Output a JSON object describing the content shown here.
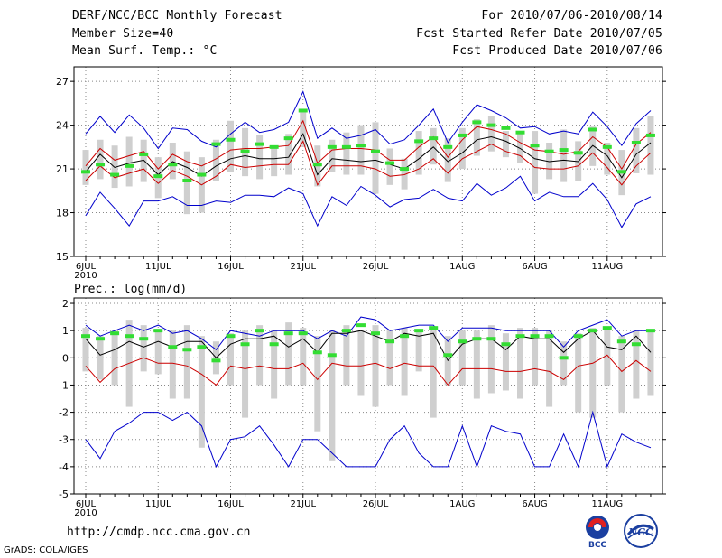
{
  "header": {
    "title": "DERF/NCC/BCC Monthly Forecast",
    "member_size": "Member Size=40",
    "variable": "Mean Surf. Temp.: °C",
    "period": "For 2010/07/06-2010/08/14",
    "started": "Fcst Started Refer Date 2010/07/05",
    "produced": "Fcst Produced Date 2010/07/06"
  },
  "footer": {
    "url": "http://cmdp.ncc.cma.gov.cn",
    "grads": "GrADS: COLA/IGES",
    "logo_bcc": "BCC",
    "logo_ncc": "NCC"
  },
  "colors": {
    "max": "#0000cc",
    "mean": "#000000",
    "spread": "#cc0000",
    "box": "#cfcfcf",
    "obs": "#33dd33",
    "grid": "#888888"
  },
  "chart_data": [
    {
      "type": "line",
      "title": "Mean Surf. Temp.: °C",
      "x_labels": [
        "6JUL\n2010",
        "11JUL",
        "16JUL",
        "21JUL",
        "26JUL",
        "1AUG",
        "6AUG",
        "11AUG"
      ],
      "x_label_index": [
        0,
        5,
        10,
        15,
        20,
        26,
        31,
        36
      ],
      "ylim": [
        15,
        28
      ],
      "yticks": [
        15,
        18,
        21,
        24,
        27
      ],
      "days": 40,
      "series": [
        {
          "name": "max",
          "color": "#0000cc",
          "values": [
            17.8,
            19.4,
            18.3,
            17.1,
            18.8,
            18.8,
            19.1,
            18.5,
            18.5,
            18.8,
            18.7,
            19.2,
            19.2,
            19.1,
            19.7,
            19.3,
            17.1,
            19.1,
            18.5,
            19.8,
            19.2,
            18.4,
            18.9,
            19.0,
            19.6,
            19.0,
            18.8,
            20.0,
            19.2,
            19.7,
            20.5,
            18.8,
            19.4,
            19.1,
            19.1,
            20.0,
            18.9,
            17.0,
            18.6,
            19.1
          ]
        },
        {
          "name": "ens_max",
          "color": "#0000cc",
          "values": [
            23.4,
            24.6,
            23.5,
            24.7,
            23.8,
            22.4,
            23.8,
            23.7,
            22.9,
            22.5,
            23.4,
            24.2,
            23.5,
            23.7,
            24.2,
            26.3,
            23.1,
            23.8,
            23.1,
            23.3,
            23.7,
            22.7,
            23.0,
            24.0,
            25.1,
            22.8,
            24.2,
            25.4,
            25.0,
            24.5,
            23.8,
            23.9,
            23.4,
            23.6,
            23.4,
            24.9,
            23.9,
            22.6,
            24.1,
            25.0
          ]
        },
        {
          "name": "upper",
          "color": "#cc0000",
          "values": [
            21.2,
            22.4,
            21.6,
            21.9,
            22.2,
            21.0,
            22.0,
            21.5,
            21.2,
            21.7,
            22.3,
            22.4,
            22.4,
            22.5,
            22.6,
            24.3,
            21.4,
            22.3,
            22.4,
            22.4,
            22.3,
            21.6,
            21.6,
            22.5,
            23.2,
            21.8,
            23.0,
            23.9,
            23.7,
            23.4,
            22.8,
            22.3,
            22.2,
            22.0,
            22.2,
            23.2,
            22.5,
            21.0,
            22.7,
            23.5
          ]
        },
        {
          "name": "mean",
          "color": "#000000",
          "values": [
            20.8,
            22.0,
            21.1,
            21.4,
            21.6,
            20.6,
            21.5,
            21.1,
            20.5,
            21.2,
            21.7,
            21.9,
            21.7,
            21.7,
            21.8,
            23.4,
            20.6,
            21.7,
            21.6,
            21.5,
            21.6,
            21.3,
            21.0,
            21.7,
            22.5,
            21.5,
            22.1,
            23.0,
            23.2,
            22.9,
            22.4,
            21.7,
            21.5,
            21.6,
            21.5,
            22.6,
            21.9,
            20.4,
            22.0,
            22.8
          ]
        },
        {
          "name": "lower",
          "color": "#cc0000",
          "values": [
            20.2,
            21.2,
            20.4,
            20.7,
            21.0,
            20.0,
            20.9,
            20.5,
            19.9,
            20.5,
            21.3,
            21.1,
            21.2,
            21.3,
            21.3,
            22.9,
            19.9,
            21.2,
            21.2,
            21.2,
            21.0,
            20.5,
            20.6,
            21.0,
            21.7,
            20.7,
            21.7,
            22.2,
            22.7,
            22.2,
            21.9,
            21.1,
            21.0,
            21.0,
            21.2,
            22.1,
            21.1,
            19.9,
            21.2,
            22.1
          ]
        }
      ],
      "box_low": [
        19.9,
        20.3,
        19.7,
        19.8,
        20.1,
        19.0,
        20.3,
        17.9,
        18.0,
        20.2,
        20.8,
        20.5,
        20.3,
        20.5,
        20.6,
        22.5,
        19.8,
        20.8,
        20.6,
        20.6,
        19.3,
        19.9,
        19.6,
        20.6,
        21.3,
        20.1,
        21.0,
        21.9,
        22.2,
        21.8,
        21.4,
        19.3,
        20.3,
        20.1,
        20.2,
        21.2,
        20.6,
        19.2,
        20.7,
        20.6
      ],
      "box_high": [
        22.3,
        23.0,
        22.6,
        23.2,
        23.0,
        21.8,
        22.8,
        22.2,
        21.8,
        23.0,
        24.3,
        23.8,
        23.3,
        22.5,
        23.4,
        25.1,
        22.6,
        23.0,
        23.5,
        24.0,
        24.2,
        22.4,
        21.7,
        23.6,
        23.8,
        23.1,
        23.8,
        24.4,
        24.6,
        23.6,
        23.5,
        23.6,
        22.8,
        23.7,
        22.9,
        23.9,
        22.8,
        22.3,
        23.8,
        24.6
      ],
      "observed": [
        20.8,
        21.3,
        20.6,
        21.2,
        22.0,
        20.5,
        21.3,
        20.2,
        20.6,
        22.7,
        23.0,
        22.2,
        22.7,
        22.5,
        23.1,
        25.0,
        21.3,
        22.5,
        22.5,
        22.6,
        22.2,
        21.4,
        21.0,
        22.9,
        23.1,
        22.5,
        23.3,
        24.2,
        24.0,
        23.8,
        23.5,
        22.6,
        22.2,
        22.3,
        22.1,
        23.7,
        22.5,
        20.8,
        22.8,
        23.3
      ]
    },
    {
      "type": "line",
      "title": "Prec.: log(mm/d)",
      "x_labels": [
        "6JUL\n2010",
        "11JUL",
        "16JUL",
        "21JUL",
        "26JUL",
        "1AUG",
        "6AUG",
        "11AUG"
      ],
      "x_label_index": [
        0,
        5,
        10,
        15,
        20,
        26,
        31,
        36
      ],
      "ylim": [
        -5,
        2.2
      ],
      "yticks": [
        -5,
        -4,
        -3,
        -2,
        -1,
        0,
        1,
        2
      ],
      "days": 40,
      "series": [
        {
          "name": "min",
          "color": "#0000cc",
          "values": [
            -3.0,
            -3.7,
            -2.7,
            -2.4,
            -2.0,
            -2.0,
            -2.3,
            -2.0,
            -2.5,
            -4.0,
            -3.0,
            -2.9,
            -2.5,
            -3.2,
            -4.0,
            -3.0,
            -3.0,
            -3.5,
            -4.0,
            -4.0,
            -4.0,
            -3.0,
            -2.5,
            -3.5,
            -4.0,
            -4.0,
            -2.5,
            -4.0,
            -2.5,
            -2.7,
            -2.8,
            -4.0,
            -4.0,
            -2.8,
            -4.0,
            -2.0,
            -4.0,
            -2.8,
            -3.1,
            -3.3
          ]
        },
        {
          "name": "max",
          "color": "#0000cc",
          "values": [
            1.2,
            0.8,
            1.0,
            1.2,
            1.0,
            1.2,
            0.9,
            1.0,
            0.7,
            0.3,
            1.0,
            0.9,
            0.8,
            1.0,
            1.0,
            1.0,
            0.7,
            1.0,
            0.8,
            1.5,
            1.4,
            1.0,
            1.1,
            1.2,
            1.2,
            0.6,
            1.1,
            1.1,
            1.1,
            1.0,
            1.0,
            1.0,
            1.0,
            0.4,
            1.0,
            1.2,
            1.4,
            0.8,
            1.0,
            1.0
          ]
        },
        {
          "name": "mean",
          "color": "#000000",
          "values": [
            0.7,
            0.1,
            0.3,
            0.6,
            0.4,
            0.6,
            0.4,
            0.6,
            0.6,
            0.0,
            0.5,
            0.7,
            0.7,
            0.8,
            0.4,
            0.7,
            0.2,
            0.9,
            0.9,
            1.0,
            0.8,
            0.6,
            0.9,
            0.8,
            0.9,
            -0.1,
            0.5,
            0.7,
            0.7,
            0.3,
            0.8,
            0.7,
            0.7,
            0.2,
            0.7,
            1.0,
            0.4,
            0.3,
            0.8,
            0.2
          ]
        },
        {
          "name": "lower",
          "color": "#cc0000",
          "values": [
            -0.3,
            -0.9,
            -0.4,
            -0.2,
            0.0,
            -0.2,
            -0.2,
            -0.3,
            -0.6,
            -1.0,
            -0.3,
            -0.4,
            -0.3,
            -0.4,
            -0.4,
            -0.2,
            -0.8,
            -0.2,
            -0.3,
            -0.3,
            -0.2,
            -0.4,
            -0.2,
            -0.3,
            -0.3,
            -1.0,
            -0.4,
            -0.4,
            -0.4,
            -0.5,
            -0.5,
            -0.4,
            -0.5,
            -0.8,
            -0.3,
            -0.2,
            0.1,
            -0.5,
            -0.1,
            -0.5
          ]
        }
      ],
      "box_low": [
        -0.5,
        -0.8,
        -1.0,
        -1.8,
        -0.5,
        -0.6,
        -1.5,
        -1.5,
        -3.3,
        -0.6,
        -1.0,
        -2.2,
        -1.0,
        -1.5,
        -1.0,
        -1.0,
        -2.7,
        -3.8,
        -1.0,
        -1.4,
        -1.8,
        -1.0,
        -1.4,
        -0.5,
        -2.2,
        -1.0,
        -1.0,
        -1.5,
        -1.3,
        -1.2,
        -1.5,
        -1.0,
        -1.8,
        -1.0,
        -2.0,
        -2.2,
        -1.0,
        -2.0,
        -1.5,
        -1.4
      ],
      "box_high": [
        1.1,
        0.8,
        1.0,
        1.4,
        1.2,
        1.0,
        1.0,
        1.2,
        0.8,
        0.6,
        0.9,
        1.0,
        1.2,
        1.0,
        1.3,
        1.1,
        0.8,
        1.0,
        1.2,
        1.0,
        1.2,
        1.0,
        1.1,
        1.0,
        1.0,
        0.8,
        1.0,
        1.0,
        1.2,
        0.9,
        1.1,
        1.1,
        1.0,
        0.6,
        0.9,
        1.1,
        1.1,
        0.8,
        1.0,
        1.0
      ],
      "observed": [
        0.8,
        0.7,
        0.9,
        0.8,
        0.7,
        1.0,
        0.4,
        0.3,
        0.4,
        -0.1,
        0.8,
        0.5,
        1.0,
        0.5,
        0.9,
        0.9,
        0.2,
        0.1,
        1.0,
        1.2,
        0.9,
        0.6,
        0.8,
        1.0,
        1.1,
        0.1,
        0.6,
        0.7,
        0.7,
        0.5,
        0.8,
        0.8,
        0.8,
        0.0,
        0.8,
        1.0,
        1.1,
        0.6,
        0.5,
        1.0
      ]
    }
  ]
}
